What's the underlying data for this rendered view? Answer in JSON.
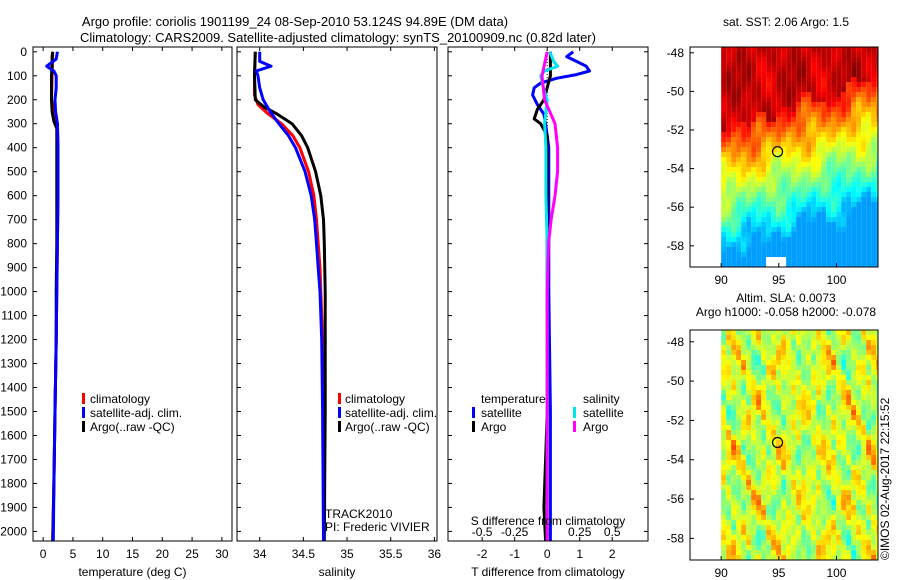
{
  "title": {
    "line1": "Argo profile: coriolis 1901199_24 08-Sep-2010 53.124S 94.89E (DM data)",
    "line2": "Climatology: CARS2009. Satellite-adjusted climatology: synTS_20100909.nc (0.82d later)"
  },
  "credit": "©IMOS 02-Aug-2017 22:15:52",
  "colors": {
    "climatology": "#ff0000",
    "satellite": "#0000ff",
    "argo": "#000000",
    "sal_satellite": "#00e5ee",
    "sal_argo": "#ff00ff"
  },
  "chart_data": [
    {
      "type": "line",
      "id": "temperature",
      "xlabel": "temperature (deg C)",
      "ylabel": "",
      "xlim": [
        -1.7,
        31.7
      ],
      "ylim": [
        2040,
        -20
      ],
      "xticks": [
        "0",
        "5",
        "10",
        "15",
        "20",
        "25",
        "30"
      ],
      "xtick_values": [
        0,
        5,
        10,
        15,
        20,
        25,
        30
      ],
      "yticks": [
        "0",
        "100",
        "200",
        "300",
        "400",
        "500",
        "600",
        "700",
        "800",
        "900",
        "1000",
        "1100",
        "1200",
        "1300",
        "1400",
        "1500",
        "1600",
        "1700",
        "1800",
        "1900",
        "2000"
      ],
      "ytick_values": [
        0,
        100,
        200,
        300,
        400,
        500,
        600,
        700,
        800,
        900,
        1000,
        1100,
        1200,
        1300,
        1400,
        1500,
        1600,
        1700,
        1800,
        1900,
        2000
      ],
      "legend": [
        "climatology",
        "satellite-adj. clim.",
        "Argo(..raw -QC)"
      ],
      "series": [
        {
          "name": "climatology",
          "color": "#ff0000",
          "depth": [
            0,
            100,
            200,
            300,
            400,
            600,
            800,
            1000,
            1200,
            1500,
            1800,
            2040
          ],
          "values": [
            1.6,
            1.5,
            1.4,
            2.4,
            2.5,
            2.5,
            2.4,
            2.3,
            2.2,
            2.0,
            1.8,
            1.6
          ]
        },
        {
          "name": "Argo(..raw -QC)",
          "color": "#000000",
          "depth": [
            0,
            20,
            50,
            100,
            150,
            200,
            250,
            290,
            320,
            400,
            600,
            800,
            1000,
            1200,
            1500,
            1800,
            2040
          ],
          "values": [
            1.6,
            1.5,
            1.5,
            1.4,
            1.4,
            1.4,
            1.5,
            1.8,
            2.3,
            2.3,
            2.3,
            2.3,
            2.2,
            2.2,
            2.0,
            1.8,
            1.6
          ]
        },
        {
          "name": "satellite-adj. clim.",
          "color": "#0000ff",
          "depth": [
            0,
            30,
            60,
            80,
            100,
            150,
            200,
            250,
            300,
            400,
            600,
            800,
            1000,
            1200,
            1500,
            1800,
            2040
          ],
          "values": [
            2.4,
            2.2,
            0.6,
            1.8,
            2.2,
            2.2,
            2.0,
            2.1,
            2.4,
            2.5,
            2.5,
            2.4,
            2.3,
            2.2,
            2.0,
            1.8,
            1.7
          ]
        }
      ]
    },
    {
      "type": "line",
      "id": "salinity",
      "xlabel": "salinity",
      "xlim": [
        33.74,
        36.03
      ],
      "ylim": [
        2040,
        -20
      ],
      "xticks": [
        "34",
        "34.5",
        "35",
        "35.5",
        "36"
      ],
      "xtick_values": [
        34,
        34.5,
        35,
        35.5,
        36
      ],
      "legend": [
        "climatology",
        "satellite-adj. clim.",
        "Argo(..raw -QC)"
      ],
      "annotation": [
        "TRACK2010",
        "PI: Frederic VIVIER"
      ],
      "series": [
        {
          "name": "climatology",
          "color": "#ff0000",
          "depth": [
            0,
            100,
            180,
            220,
            260,
            300,
            350,
            400,
            500,
            600,
            700,
            800,
            900,
            1000,
            1200,
            1500,
            2040
          ],
          "values": [
            33.95,
            33.94,
            33.94,
            33.98,
            34.1,
            34.25,
            34.38,
            34.46,
            34.56,
            34.62,
            34.65,
            34.67,
            34.69,
            34.7,
            34.72,
            34.73,
            34.73
          ]
        },
        {
          "name": "Argo(..raw -QC)",
          "color": "#000000",
          "depth": [
            0,
            100,
            200,
            230,
            260,
            300,
            350,
            400,
            500,
            600,
            700,
            800,
            1000,
            1200,
            1500,
            2040
          ],
          "values": [
            33.95,
            33.94,
            33.95,
            34.05,
            34.2,
            34.37,
            34.48,
            34.55,
            34.64,
            34.7,
            34.73,
            34.74,
            34.75,
            34.75,
            34.75,
            34.74
          ]
        },
        {
          "name": "satellite-adj. clim.",
          "color": "#0000ff",
          "depth": [
            0,
            40,
            60,
            80,
            100,
            150,
            200,
            250,
            300,
            350,
            400,
            500,
            600,
            700,
            800,
            900,
            1000,
            1200,
            1500,
            2040
          ],
          "values": [
            34.0,
            34.0,
            34.13,
            33.96,
            33.98,
            34.0,
            34.04,
            34.12,
            34.22,
            34.33,
            34.41,
            34.52,
            34.59,
            34.63,
            34.65,
            34.67,
            34.69,
            34.71,
            34.72,
            34.73
          ]
        }
      ]
    },
    {
      "type": "line",
      "id": "difference",
      "xlabel": "T difference from climatology",
      "xlabel_top": "S difference from climatology",
      "xlim": [
        -3.05,
        3.1
      ],
      "ylim": [
        2040,
        -20
      ],
      "xticks": [
        "-2",
        "-1",
        "0",
        "1",
        "2"
      ],
      "xtick_values": [
        -2,
        -1,
        0,
        1,
        2
      ],
      "s_ticks": [
        "-0.5",
        "-0.25",
        "0",
        "0.25",
        "0.5"
      ],
      "s_tick_values": [
        -0.5,
        -0.25,
        0,
        0.25,
        0.5
      ],
      "s_to_t_scale": 4,
      "legend": {
        "temperature_title": "temperature",
        "salinity_title": "salinity",
        "t_satellite": "satellite",
        "t_argo": "Argo",
        "s_satellite": "satellite",
        "s_argo": "Argo"
      },
      "series": [
        {
          "name": "T satellite",
          "color": "#0000ff",
          "units": "T",
          "depth": [
            0,
            20,
            40,
            60,
            80,
            95,
            110,
            130,
            150,
            180,
            220,
            260,
            300,
            400,
            600,
            1000,
            1500,
            2040
          ],
          "values": [
            0.8,
            0.6,
            0.9,
            1.2,
            1.3,
            0.9,
            0.3,
            -0.2,
            -0.4,
            -0.45,
            -0.3,
            -0.1,
            -0.05,
            0.05,
            0.05,
            0.05,
            0.1,
            0.1
          ]
        },
        {
          "name": "T Argo",
          "color": "#000000",
          "units": "T",
          "depth": [
            0,
            100,
            200,
            240,
            280,
            300,
            350,
            400,
            600,
            1000,
            1500,
            1700,
            1900,
            2040
          ],
          "values": [
            0.1,
            0.1,
            -0.1,
            -0.3,
            -0.4,
            -0.2,
            0.0,
            0.0,
            0.0,
            0.0,
            0.0,
            -0.05,
            -0.1,
            -0.05
          ]
        },
        {
          "name": "S satellite",
          "color": "#00e5ee",
          "units": "S",
          "depth": [
            0,
            40,
            60,
            80,
            100,
            150,
            200,
            300,
            400,
            600,
            800,
            1000,
            1500,
            2040
          ],
          "values": [
            0.02,
            0.05,
            0.08,
            -0.02,
            -0.05,
            -0.03,
            0.0,
            -0.02,
            -0.01,
            -0.01,
            0.0,
            0.0,
            0.0,
            0.0
          ]
        },
        {
          "name": "S Argo",
          "color": "#ff00ff",
          "units": "S",
          "depth": [
            0,
            50,
            100,
            150,
            200,
            250,
            300,
            350,
            400,
            500,
            600,
            700,
            800,
            1000,
            1500,
            2040
          ],
          "values": [
            0.0,
            -0.02,
            -0.04,
            -0.03,
            -0.02,
            0.02,
            0.06,
            0.07,
            0.08,
            0.08,
            0.06,
            0.03,
            0.01,
            0.0,
            0.0,
            0.0
          ]
        }
      ]
    },
    {
      "type": "heatmap",
      "id": "sst-map",
      "title": "sat. SST: 2.06 Argo: 1.5",
      "xlim": [
        87.3,
        103.6
      ],
      "ylim": [
        -59.1,
        -47.7
      ],
      "xticks": [
        "90",
        "95",
        "100"
      ],
      "xtick_values": [
        90,
        95,
        100
      ],
      "yticks": [
        "-48",
        "-50",
        "-52",
        "-54",
        "-56",
        "-58"
      ],
      "ytick_values": [
        -48,
        -50,
        -52,
        -54,
        -56,
        -58
      ],
      "marker": {
        "lon": 94.89,
        "lat": -53.124
      }
    },
    {
      "type": "heatmap",
      "id": "sla-map",
      "title": "Altim. SLA: 0.0073",
      "subtitle": "Argo h1000: -0.058 h2000: -0.078",
      "xlim": [
        87.3,
        103.6
      ],
      "ylim": [
        -59.1,
        -47.4
      ],
      "xticks": [
        "90",
        "95",
        "100"
      ],
      "xtick_values": [
        90,
        95,
        100
      ],
      "yticks": [
        "-48",
        "-50",
        "-52",
        "-54",
        "-56",
        "-58"
      ],
      "ytick_values": [
        -48,
        -50,
        -52,
        -54,
        -56,
        -58
      ],
      "marker": {
        "lon": 94.89,
        "lat": -53.124
      }
    }
  ]
}
